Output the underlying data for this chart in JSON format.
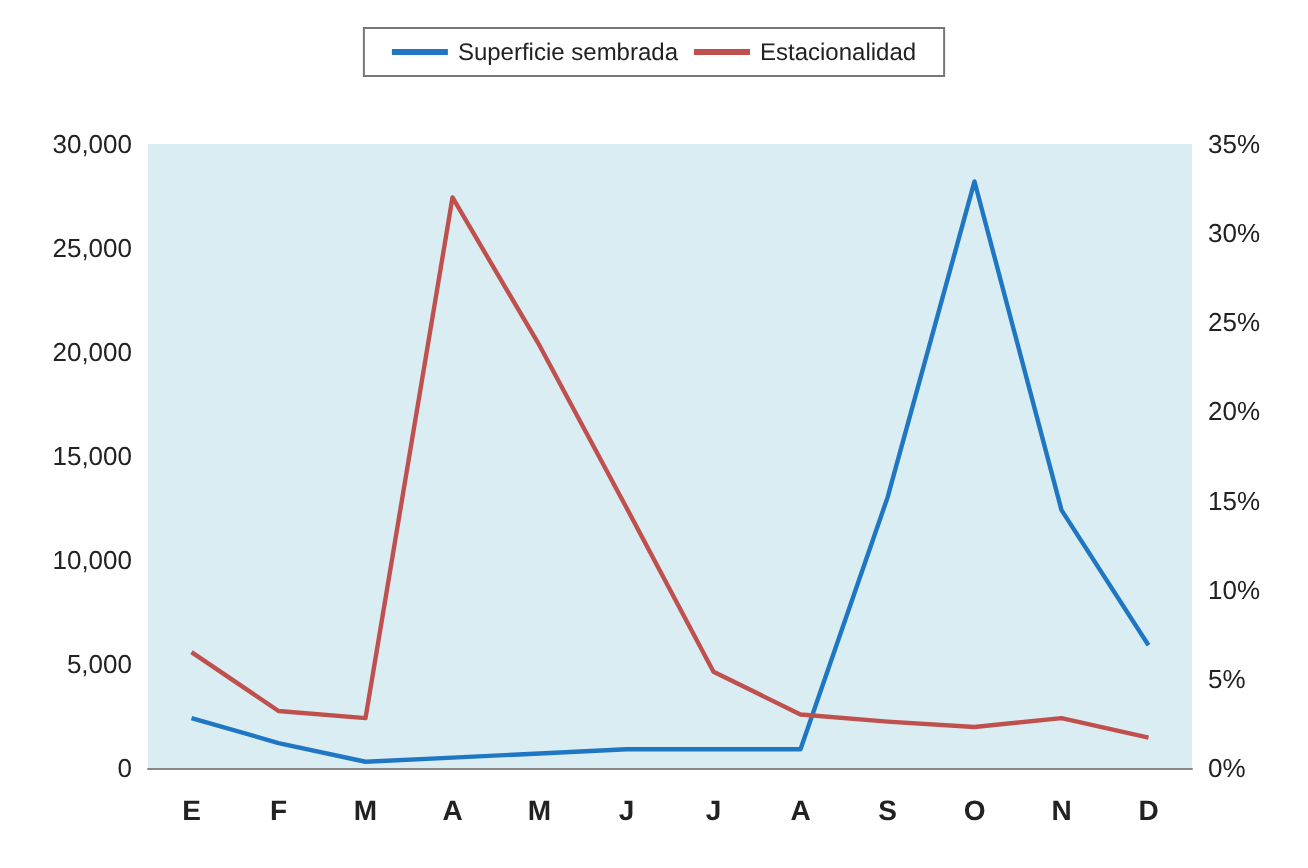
{
  "chart_data": {
    "type": "line",
    "categories": [
      "E",
      "F",
      "M",
      "A",
      "M",
      "J",
      "J",
      "A",
      "S",
      "O",
      "N",
      "D"
    ],
    "series": [
      {
        "name": "Superficie sembrada",
        "color": "#1f77c4",
        "values": [
          2400,
          1200,
          300,
          500,
          700,
          900,
          900,
          900,
          13000,
          28200,
          12400,
          5900
        ]
      },
      {
        "name": "Estacionalidad",
        "color": "#c0504d",
        "axis": "y2",
        "values": [
          6.5,
          3.2,
          2.8,
          32.0,
          23.7,
          14.6,
          5.4,
          3.0,
          2.6,
          2.3,
          2.8,
          1.7
        ]
      }
    ],
    "ylim": [
      0,
      30000
    ],
    "yticks": [
      0,
      {
        "value": 5000,
        "label": "5,000"
      },
      {
        "value": 10000,
        "label": "10,000"
      },
      {
        "value": 15000,
        "label": "15,000"
      },
      {
        "value": 20000,
        "label": "20,000"
      },
      {
        "value": 25000,
        "label": "25,000"
      },
      {
        "value": 30000,
        "label": "30,000"
      }
    ],
    "y2lim": [
      0,
      35
    ],
    "y2ticks": [
      {
        "value": 0,
        "label": "0%"
      },
      {
        "value": 5,
        "label": "5%"
      },
      {
        "value": 10,
        "label": "10%"
      },
      {
        "value": 15,
        "label": "15%"
      },
      {
        "value": 20,
        "label": "20%"
      },
      {
        "value": 25,
        "label": "25%"
      },
      {
        "value": 30,
        "label": "30%"
      },
      {
        "value": 35,
        "label": "35%"
      }
    ],
    "legend": "top",
    "grid": false,
    "marker": "none",
    "line_style": "solid"
  }
}
